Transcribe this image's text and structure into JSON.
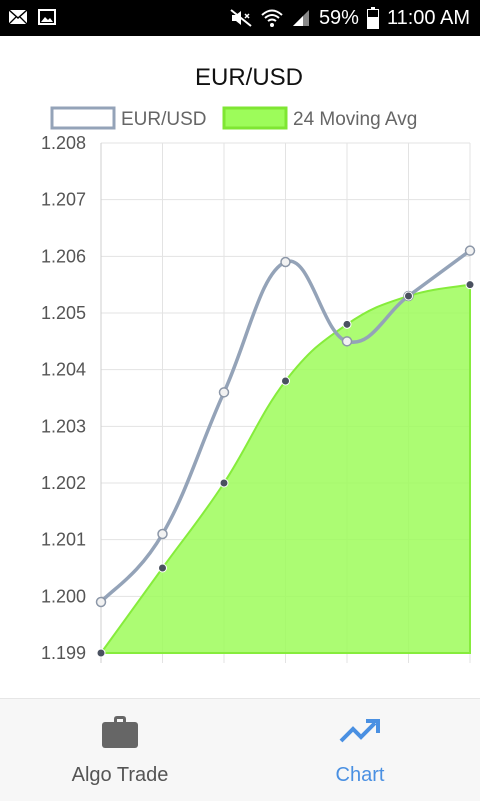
{
  "status_bar": {
    "battery_percent": "59%",
    "time": "11:00 AM",
    "left_icons": [
      "mail-icon",
      "image-icon"
    ],
    "right_icons": [
      "mute-icon",
      "wifi-icon",
      "signal-icon",
      "battery-icon"
    ]
  },
  "chart_data": {
    "type": "line",
    "title": "EUR/USD",
    "categories": [
      "",
      "",
      "",
      "",
      "",
      "",
      ""
    ],
    "series": [
      {
        "name": "EUR/USD",
        "values": [
          1.1999,
          1.2011,
          1.2036,
          1.2059,
          1.2045,
          1.2053,
          1.2061
        ],
        "color": "#94a3b8",
        "style": "line"
      },
      {
        "name": "24 Moving Avg",
        "values": [
          1.199,
          1.2005,
          1.202,
          1.2038,
          1.2048,
          1.2053,
          1.2055
        ],
        "color": "#9dfc5a",
        "style": "area"
      }
    ],
    "yticks": [
      "1.208",
      "1.207",
      "1.206",
      "1.205",
      "1.204",
      "1.203",
      "1.202",
      "1.201",
      "1.200",
      "1.199"
    ],
    "ylim": [
      1.199,
      1.208
    ],
    "grid": true,
    "legend": "top"
  },
  "bottom_nav": {
    "items": [
      {
        "label": "Algo Trade",
        "icon": "briefcase-icon",
        "active": false
      },
      {
        "label": "Chart",
        "icon": "trending-up-icon",
        "active": true
      }
    ],
    "active_color": "#4a90e2"
  }
}
